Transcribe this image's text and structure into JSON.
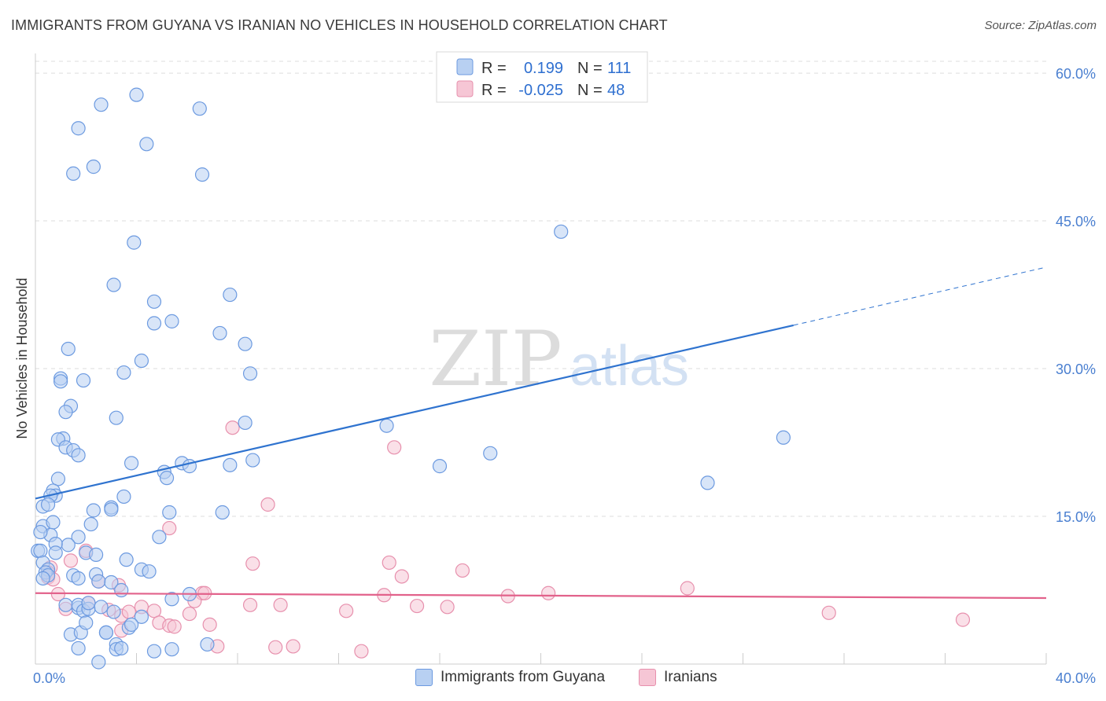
{
  "title": "IMMIGRANTS FROM GUYANA VS IRANIAN NO VEHICLES IN HOUSEHOLD CORRELATION CHART",
  "source": "Source: ZipAtlas.com",
  "watermark": {
    "zip": "ZIP",
    "atlas": "atlas"
  },
  "colors": {
    "blue_fill": "#b8d0f2",
    "blue_stroke": "#6c9ae0",
    "blue_line": "#2f73cf",
    "pink_fill": "#f6c6d5",
    "pink_stroke": "#e790ad",
    "pink_line": "#e2628b",
    "tick_text": "#4a7fd0",
    "grid": "#dddddd"
  },
  "legend": {
    "rows": [
      {
        "r_label": "R =",
        "r_value": "0.199",
        "n_label": "N =",
        "n_value": "111"
      },
      {
        "r_label": "R =",
        "r_value": "-0.025",
        "n_label": "N =",
        "n_value": "48"
      }
    ]
  },
  "bottom_legend": [
    "Immigrants from Guyana",
    "Iranians"
  ],
  "chart_data": {
    "type": "scatter",
    "title": "IMMIGRANTS FROM GUYANA VS IRANIAN NO VEHICLES IN HOUSEHOLD CORRELATION CHART",
    "xlabel": "",
    "ylabel": "No Vehicles in Household",
    "xlim": [
      0,
      40
    ],
    "ylim": [
      0,
      62
    ],
    "x_tick_labels": [
      {
        "value": 0,
        "label": "0.0%"
      },
      {
        "value": 40,
        "label": "40.0%"
      }
    ],
    "y_tick_labels": [
      {
        "value": 15,
        "label": "15.0%"
      },
      {
        "value": 30,
        "label": "30.0%"
      },
      {
        "value": 45,
        "label": "45.0%"
      },
      {
        "value": 60,
        "label": "60.0%"
      }
    ],
    "grid": true,
    "legend_position": "top-center",
    "series": [
      {
        "name": "Immigrants from Guyana",
        "r": 0.199,
        "n": 111,
        "trend": {
          "x0": 0,
          "y0": 16.8,
          "x1": 30,
          "y1": 34.4,
          "dash_to_x": 40,
          "dash_to_y": 40.3
        },
        "points": [
          [
            2.6,
            56.8
          ],
          [
            4.0,
            57.8
          ],
          [
            6.5,
            56.4
          ],
          [
            1.7,
            54.4
          ],
          [
            4.4,
            52.8
          ],
          [
            1.5,
            49.8
          ],
          [
            2.3,
            50.5
          ],
          [
            6.6,
            49.7
          ],
          [
            3.9,
            42.8
          ],
          [
            20.8,
            43.9
          ],
          [
            3.1,
            38.5
          ],
          [
            7.7,
            37.5
          ],
          [
            4.7,
            36.8
          ],
          [
            4.7,
            34.6
          ],
          [
            5.4,
            34.8
          ],
          [
            7.3,
            33.6
          ],
          [
            8.3,
            32.5
          ],
          [
            1.3,
            32.0
          ],
          [
            4.2,
            30.8
          ],
          [
            3.5,
            29.6
          ],
          [
            8.5,
            29.5
          ],
          [
            1.0,
            29.0
          ],
          [
            1.9,
            28.8
          ],
          [
            1.0,
            28.7
          ],
          [
            1.4,
            26.2
          ],
          [
            1.2,
            25.6
          ],
          [
            3.2,
            25.0
          ],
          [
            8.3,
            24.5
          ],
          [
            13.9,
            24.2
          ],
          [
            29.6,
            23.0
          ],
          [
            1.1,
            22.9
          ],
          [
            0.9,
            22.8
          ],
          [
            1.2,
            22.0
          ],
          [
            1.5,
            21.7
          ],
          [
            1.7,
            21.2
          ],
          [
            18.0,
            21.4
          ],
          [
            3.8,
            20.4
          ],
          [
            5.8,
            20.4
          ],
          [
            6.1,
            20.1
          ],
          [
            7.7,
            20.2
          ],
          [
            8.6,
            20.7
          ],
          [
            5.1,
            19.5
          ],
          [
            16.0,
            20.1
          ],
          [
            5.2,
            18.9
          ],
          [
            26.6,
            18.4
          ],
          [
            0.9,
            18.8
          ],
          [
            0.7,
            17.6
          ],
          [
            0.8,
            17.1
          ],
          [
            0.6,
            17.1
          ],
          [
            0.3,
            16.0
          ],
          [
            0.5,
            16.2
          ],
          [
            2.3,
            15.6
          ],
          [
            3.0,
            15.9
          ],
          [
            3.5,
            17.0
          ],
          [
            3.0,
            15.7
          ],
          [
            5.3,
            15.4
          ],
          [
            7.4,
            15.4
          ],
          [
            0.3,
            14.0
          ],
          [
            0.7,
            14.4
          ],
          [
            2.2,
            14.2
          ],
          [
            0.6,
            13.1
          ],
          [
            0.2,
            13.4
          ],
          [
            1.7,
            12.9
          ],
          [
            4.9,
            12.9
          ],
          [
            0.1,
            11.5
          ],
          [
            0.2,
            11.5
          ],
          [
            1.3,
            12.1
          ],
          [
            0.8,
            12.2
          ],
          [
            0.8,
            11.3
          ],
          [
            2.0,
            11.3
          ],
          [
            2.4,
            11.1
          ],
          [
            3.6,
            10.6
          ],
          [
            0.3,
            10.3
          ],
          [
            0.5,
            9.6
          ],
          [
            0.4,
            9.3
          ],
          [
            2.4,
            9.1
          ],
          [
            0.5,
            9.0
          ],
          [
            1.5,
            9.0
          ],
          [
            4.2,
            9.6
          ],
          [
            4.5,
            9.4
          ],
          [
            2.5,
            8.4
          ],
          [
            3.0,
            8.3
          ],
          [
            0.3,
            8.7
          ],
          [
            1.7,
            8.7
          ],
          [
            3.4,
            7.5
          ],
          [
            6.1,
            7.1
          ],
          [
            1.2,
            6.0
          ],
          [
            1.7,
            5.7
          ],
          [
            1.7,
            6.0
          ],
          [
            1.9,
            5.4
          ],
          [
            2.1,
            5.6
          ],
          [
            2.1,
            6.2
          ],
          [
            3.1,
            5.3
          ],
          [
            5.4,
            6.6
          ],
          [
            4.2,
            4.8
          ],
          [
            3.7,
            3.7
          ],
          [
            2.8,
            3.2
          ],
          [
            2.8,
            3.2
          ],
          [
            1.4,
            3.0
          ],
          [
            1.8,
            3.2
          ],
          [
            3.2,
            2.0
          ],
          [
            3.2,
            1.5
          ],
          [
            1.7,
            1.6
          ],
          [
            3.4,
            1.6
          ],
          [
            4.7,
            1.3
          ],
          [
            5.4,
            1.5
          ],
          [
            2.5,
            0.2
          ],
          [
            6.8,
            2.0
          ],
          [
            3.8,
            4.0
          ],
          [
            2.0,
            4.2
          ],
          [
            2.6,
            5.8
          ]
        ]
      },
      {
        "name": "Iranians",
        "r": -0.025,
        "n": 48,
        "trend": {
          "x0": 0,
          "y0": 7.2,
          "x1": 40,
          "y1": 6.7
        },
        "points": [
          [
            7.8,
            24.0
          ],
          [
            14.2,
            22.0
          ],
          [
            9.2,
            16.2
          ],
          [
            5.3,
            13.8
          ],
          [
            0.6,
            9.8
          ],
          [
            0.5,
            9.3
          ],
          [
            1.4,
            10.5
          ],
          [
            2.0,
            11.5
          ],
          [
            8.6,
            10.2
          ],
          [
            14.0,
            10.3
          ],
          [
            14.5,
            8.9
          ],
          [
            16.9,
            9.5
          ],
          [
            0.5,
            8.8
          ],
          [
            0.7,
            8.6
          ],
          [
            2.5,
            8.4
          ],
          [
            3.3,
            8.0
          ],
          [
            6.6,
            7.2
          ],
          [
            6.7,
            7.2
          ],
          [
            6.3,
            6.4
          ],
          [
            13.8,
            7.0
          ],
          [
            18.7,
            6.9
          ],
          [
            20.3,
            7.2
          ],
          [
            25.8,
            7.7
          ],
          [
            0.9,
            7.1
          ],
          [
            1.2,
            5.6
          ],
          [
            2.1,
            6.2
          ],
          [
            2.9,
            5.5
          ],
          [
            3.4,
            4.9
          ],
          [
            3.7,
            5.3
          ],
          [
            4.2,
            5.8
          ],
          [
            4.7,
            5.4
          ],
          [
            4.9,
            4.2
          ],
          [
            5.3,
            3.9
          ],
          [
            5.5,
            3.8
          ],
          [
            6.1,
            5.1
          ],
          [
            8.5,
            6.0
          ],
          [
            9.7,
            6.0
          ],
          [
            12.3,
            5.4
          ],
          [
            15.1,
            5.9
          ],
          [
            16.3,
            5.8
          ],
          [
            31.4,
            5.2
          ],
          [
            36.7,
            4.5
          ],
          [
            3.4,
            3.4
          ],
          [
            6.9,
            4.0
          ],
          [
            7.2,
            1.8
          ],
          [
            9.5,
            1.7
          ],
          [
            10.2,
            1.8
          ],
          [
            12.9,
            1.3
          ]
        ]
      }
    ]
  }
}
